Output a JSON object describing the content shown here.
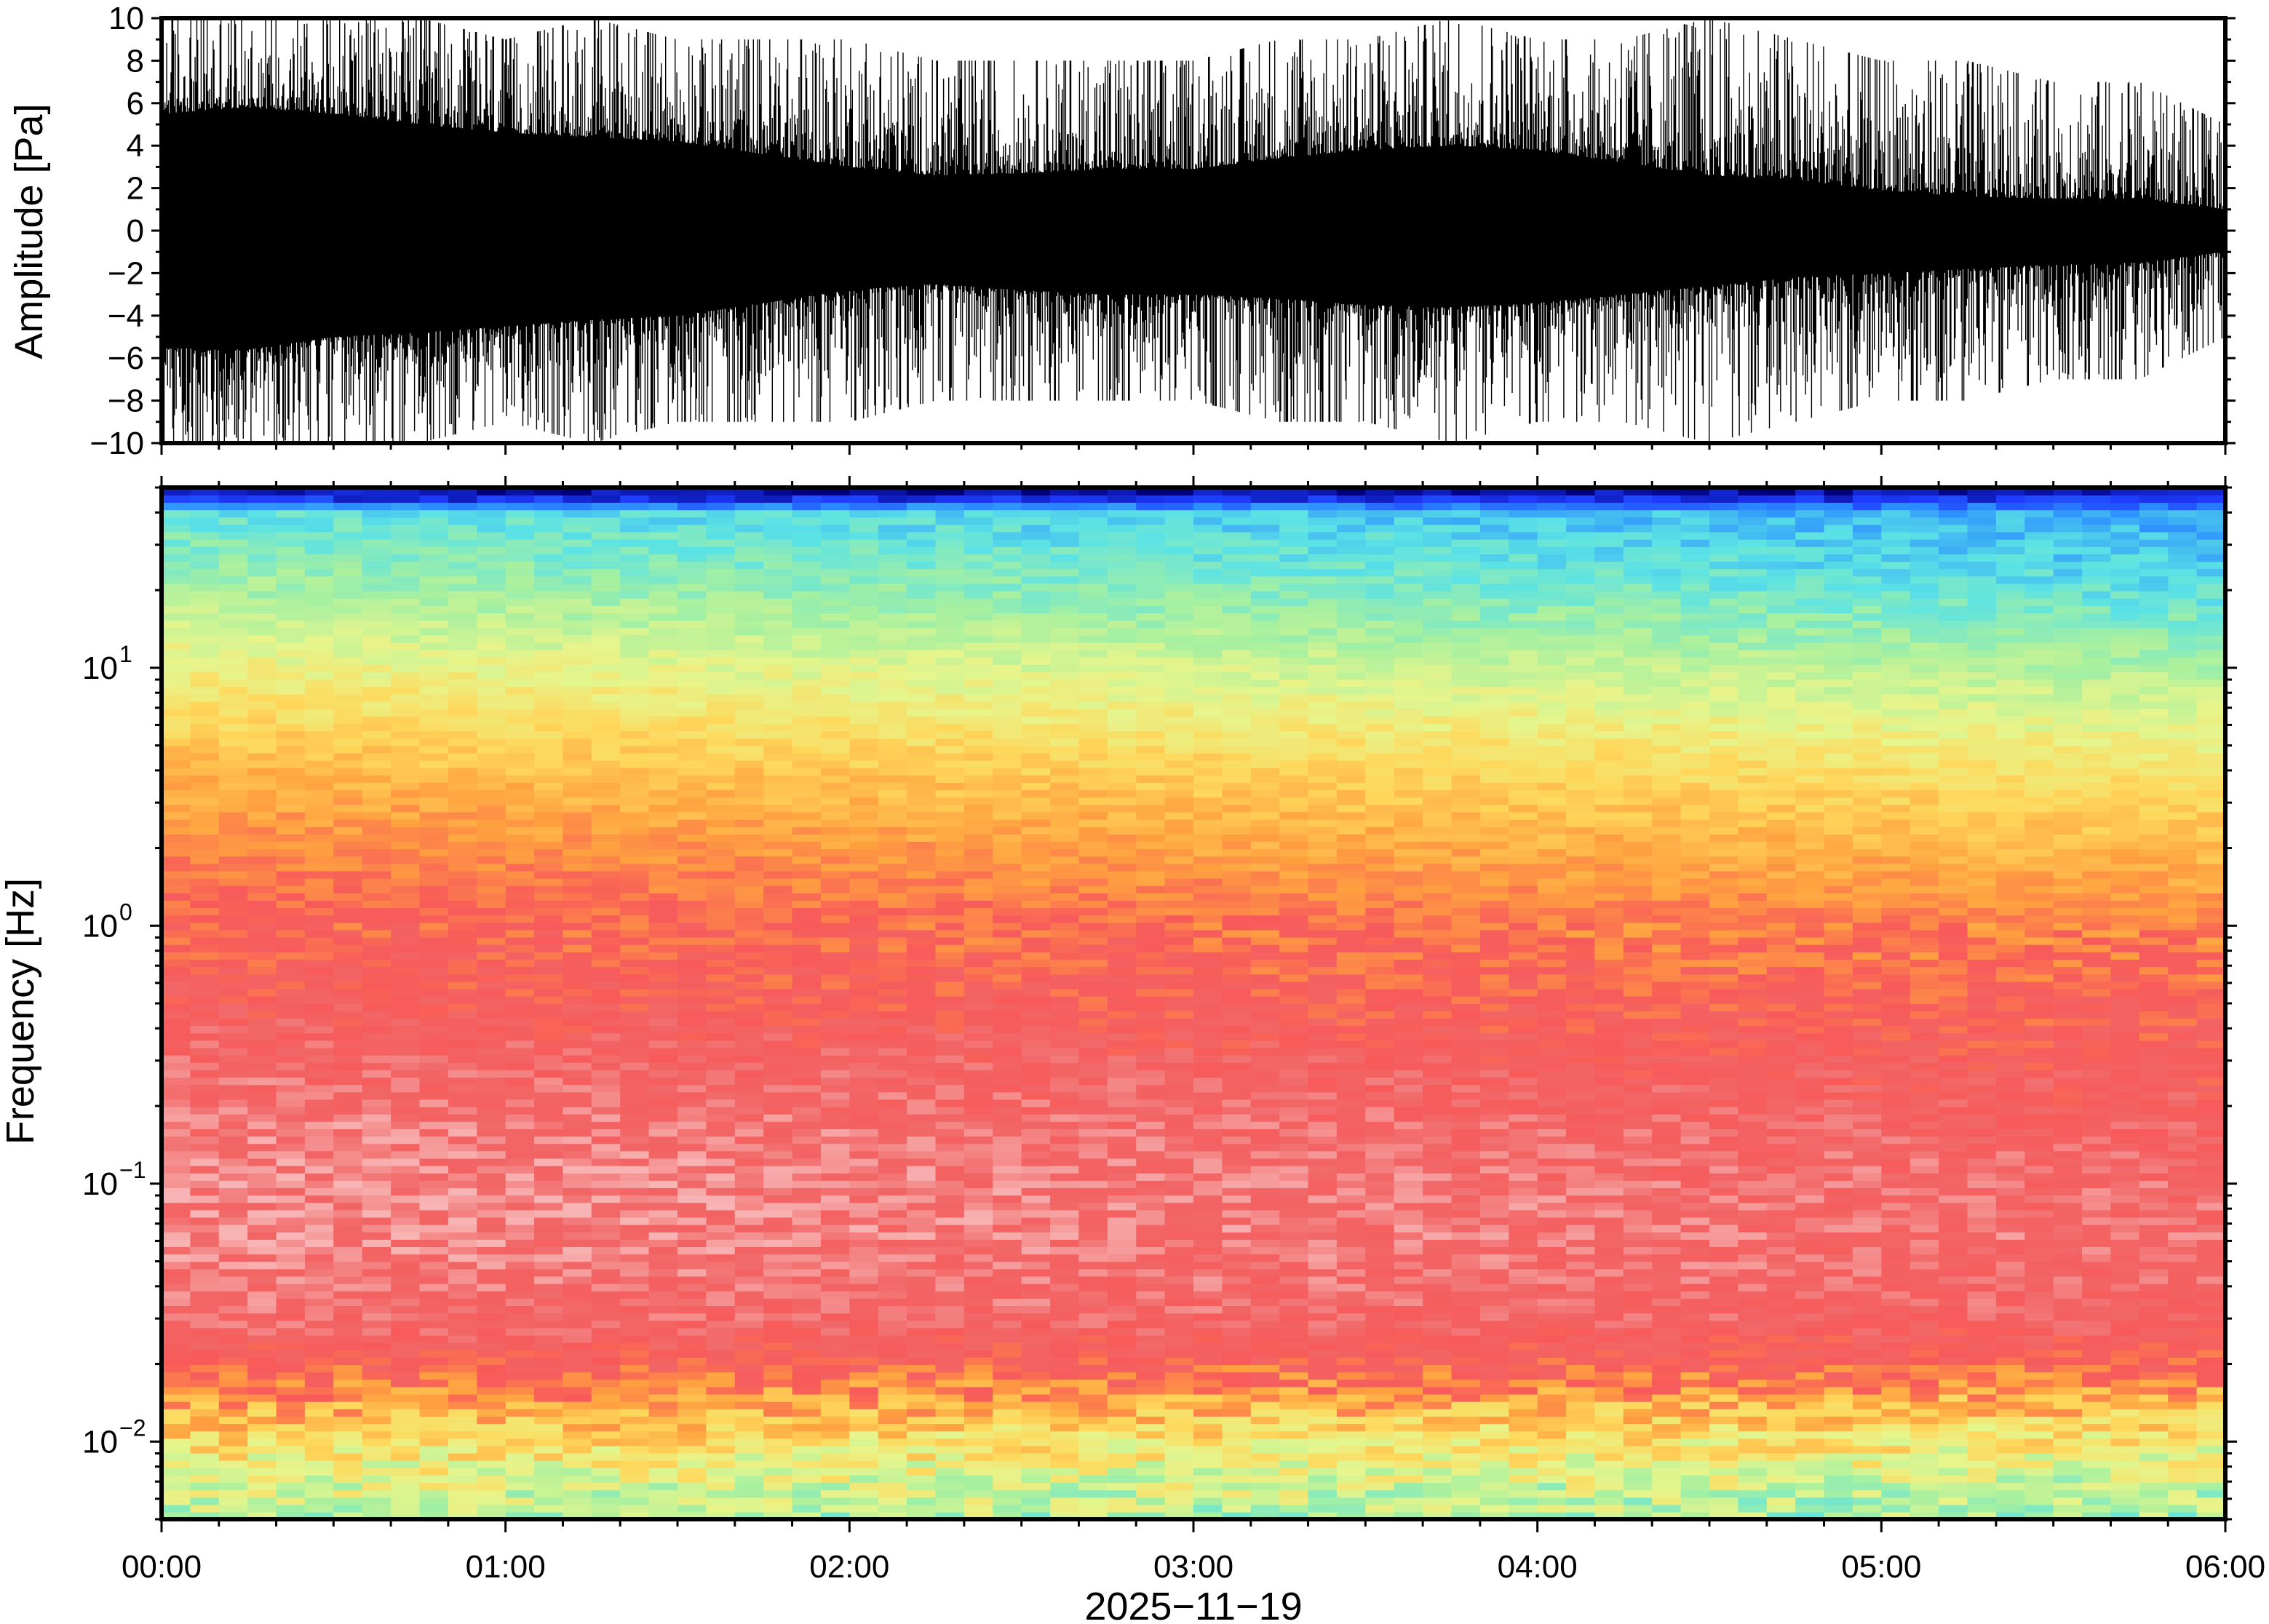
{
  "chart_data": [
    {
      "type": "line",
      "panel": "waveform",
      "ylabel": "Amplitude [Pa]",
      "ylim": [
        -10,
        10
      ],
      "yticks": [
        -10,
        -8,
        -6,
        -4,
        -2,
        0,
        2,
        4,
        6,
        8,
        10
      ],
      "ytick_labels": [
        "−10",
        "−8",
        "−6",
        "−4",
        "−2",
        "0",
        "2",
        "4",
        "6",
        "8",
        "10"
      ],
      "x_range_hours": [
        0,
        6
      ],
      "series_color": "#000000",
      "envelope": {
        "hours": [
          0,
          0.25,
          0.5,
          0.75,
          1.0,
          1.25,
          1.5,
          1.75,
          2.0,
          2.25,
          2.5,
          2.75,
          3.0,
          3.25,
          3.5,
          3.75,
          4.0,
          4.25,
          4.5,
          4.75,
          5.0,
          5.25,
          5.5,
          5.75,
          6.0
        ],
        "core_upper": [
          5.5,
          5.8,
          5.5,
          5.0,
          4.6,
          4.4,
          4.2,
          3.6,
          3.0,
          2.6,
          2.7,
          2.9,
          2.9,
          3.4,
          3.8,
          4.0,
          3.8,
          3.2,
          2.6,
          2.4,
          1.9,
          1.6,
          1.5,
          1.5,
          1.0
        ],
        "core_lower": [
          -5.5,
          -5.6,
          -5.0,
          -4.8,
          -4.5,
          -4.2,
          -4.0,
          -3.4,
          -2.8,
          -2.5,
          -2.8,
          -3.0,
          -3.0,
          -3.2,
          -3.5,
          -3.6,
          -3.4,
          -3.0,
          -2.6,
          -2.2,
          -2.0,
          -1.8,
          -1.6,
          -1.5,
          -1.0
        ],
        "spike_max": [
          10,
          10,
          10,
          10,
          9,
          10,
          9,
          9,
          9,
          8,
          8,
          8,
          8,
          9,
          9,
          10,
          9,
          9,
          10,
          9,
          8,
          8,
          7,
          7,
          5
        ]
      }
    },
    {
      "type": "heatmap",
      "panel": "spectrogram",
      "ylabel": "Frequency [Hz]",
      "yscale": "log",
      "ylim": [
        0.005,
        50
      ],
      "yticks": [
        0.01,
        0.1,
        1,
        10
      ],
      "ytick_labels": [
        {
          "base": "10",
          "exp": "−2"
        },
        {
          "base": "10",
          "exp": "−1"
        },
        {
          "base": "10",
          "exp": "0"
        },
        {
          "base": "10",
          "exp": "1"
        }
      ],
      "xlabel": "2025−11−19",
      "x_range_hours": [
        0,
        6
      ],
      "xticks_hours": [
        0,
        1,
        2,
        3,
        4,
        5,
        6
      ],
      "xtick_labels": [
        "00:00",
        "01:00",
        "02:00",
        "03:00",
        "04:00",
        "05:00",
        "06:00"
      ],
      "colormap": [
        "#00007f",
        "#1e3cff",
        "#2a8cff",
        "#5ae2e6",
        "#a6f0a0",
        "#e6f58c",
        "#ffd75a",
        "#ffa040",
        "#f85a5a",
        "#f26666",
        "#f8b4b4"
      ],
      "level_profile": {
        "log_freq": [
          -2.3,
          -2.15,
          -2.0,
          -1.85,
          -1.7,
          -1.5,
          -1.2,
          -0.9,
          -0.6,
          -0.3,
          0.0,
          0.3,
          0.6,
          0.9,
          1.2,
          1.4,
          1.6,
          1.65,
          1.7
        ],
        "level_start": [
          0.44,
          0.5,
          0.58,
          0.7,
          0.82,
          0.9,
          0.95,
          0.95,
          0.9,
          0.84,
          0.8,
          0.74,
          0.66,
          0.56,
          0.45,
          0.38,
          0.32,
          0.1,
          0.0
        ],
        "level_end": [
          0.4,
          0.46,
          0.55,
          0.66,
          0.8,
          0.87,
          0.9,
          0.88,
          0.84,
          0.8,
          0.74,
          0.65,
          0.56,
          0.45,
          0.34,
          0.28,
          0.23,
          0.1,
          0.0
        ]
      }
    }
  ]
}
